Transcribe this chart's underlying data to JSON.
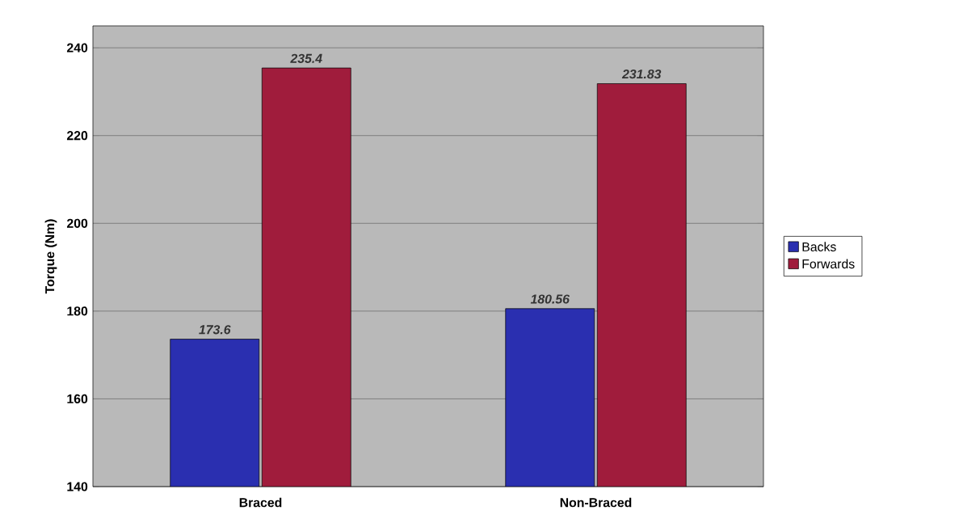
{
  "chart_data": {
    "type": "bar",
    "ylabel": "Torque (Nm)",
    "categories": [
      "Braced",
      "Non-Braced"
    ],
    "series": [
      {
        "name": "Backs",
        "color": "#2a2fb0",
        "values": [
          173.6,
          180.56
        ]
      },
      {
        "name": "Forwards",
        "color": "#a01c3c",
        "values": [
          235.4,
          231.83
        ]
      }
    ],
    "ylim": [
      140,
      245
    ],
    "yticks": [
      140,
      160,
      180,
      200,
      220,
      240
    ],
    "grid": "y",
    "legend": "right",
    "data_labels": true
  }
}
